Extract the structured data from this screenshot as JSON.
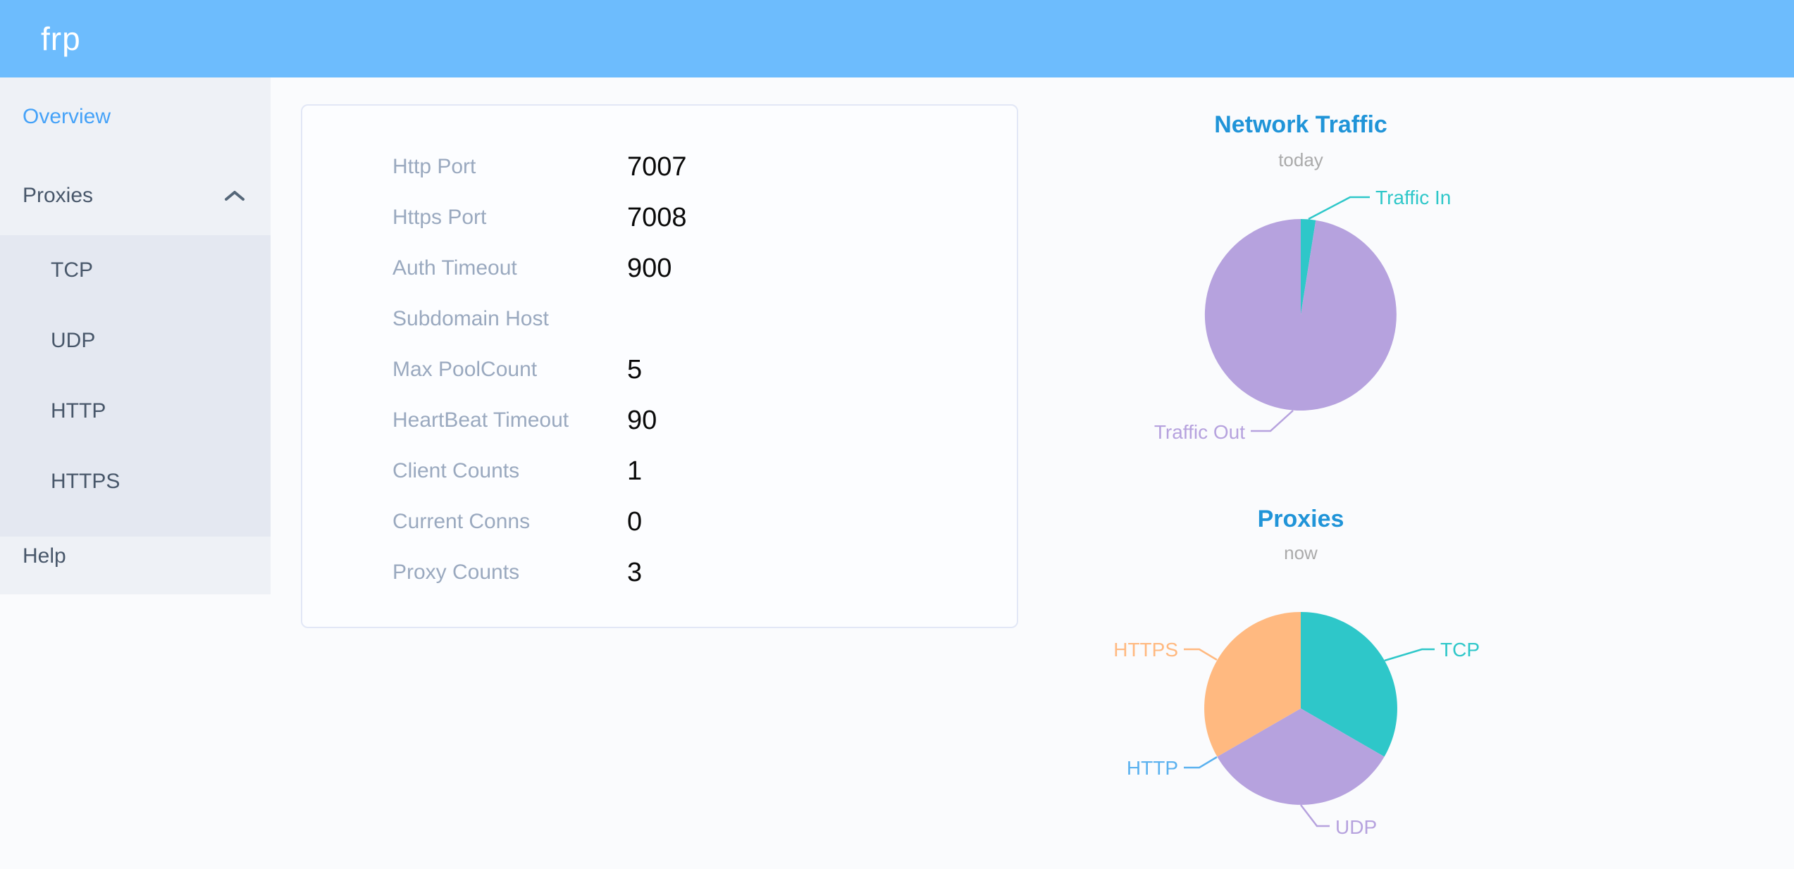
{
  "header": {
    "logo": "frp"
  },
  "sidebar": {
    "items": [
      {
        "label": "Overview",
        "active": true
      },
      {
        "label": "Proxies",
        "expanded": true,
        "children": [
          {
            "label": "TCP"
          },
          {
            "label": "UDP"
          },
          {
            "label": "HTTP"
          },
          {
            "label": "HTTPS"
          }
        ]
      },
      {
        "label": "Help"
      }
    ]
  },
  "overview_card": {
    "rows": [
      {
        "label": "Http Port",
        "value": "7007"
      },
      {
        "label": "Https Port",
        "value": "7008"
      },
      {
        "label": "Auth Timeout",
        "value": "900"
      },
      {
        "label": "Subdomain Host",
        "value": ""
      },
      {
        "label": "Max PoolCount",
        "value": "5"
      },
      {
        "label": "HeartBeat Timeout",
        "value": "90"
      },
      {
        "label": "Client Counts",
        "value": "1"
      },
      {
        "label": "Current Conns",
        "value": "0"
      },
      {
        "label": "Proxy Counts",
        "value": "3"
      }
    ]
  },
  "chart_data": [
    {
      "type": "pie",
      "title": "Network Traffic",
      "subtitle": "today",
      "labels_position": "outside-with-leader-lines",
      "legend": "none",
      "unit": "share_percent",
      "slices": [
        {
          "label": "Traffic In",
          "value": 2.5,
          "color": "#2ec7c9"
        },
        {
          "label": "Traffic Out",
          "value": 97.5,
          "color": "#b6a2de"
        }
      ]
    },
    {
      "type": "pie",
      "title": "Proxies",
      "subtitle": "now",
      "labels_position": "outside-with-leader-lines",
      "legend": "none",
      "unit": "proxy_count",
      "slices": [
        {
          "label": "TCP",
          "value": 1,
          "color": "#2ec7c9"
        },
        {
          "label": "UDP",
          "value": 1,
          "color": "#b6a2de"
        },
        {
          "label": "HTTP",
          "value": 0,
          "color": "#5ab1ef"
        },
        {
          "label": "HTTPS",
          "value": 1,
          "color": "#ffb980"
        }
      ]
    }
  ],
  "colors": {
    "header_bg": "#6dbcfd",
    "sidebar_bg": "#eef1f6",
    "submenu_bg": "#e4e8f1",
    "menu_text": "#48576a",
    "menu_active": "#45a2f8",
    "page_bg": "#fafbfd",
    "card_border": "#e2e7f6",
    "row_label": "#9aa9bf",
    "row_value": "#0a0a0a",
    "chart_title": "#2094d8",
    "chart_subtitle": "#aaaaaa"
  }
}
